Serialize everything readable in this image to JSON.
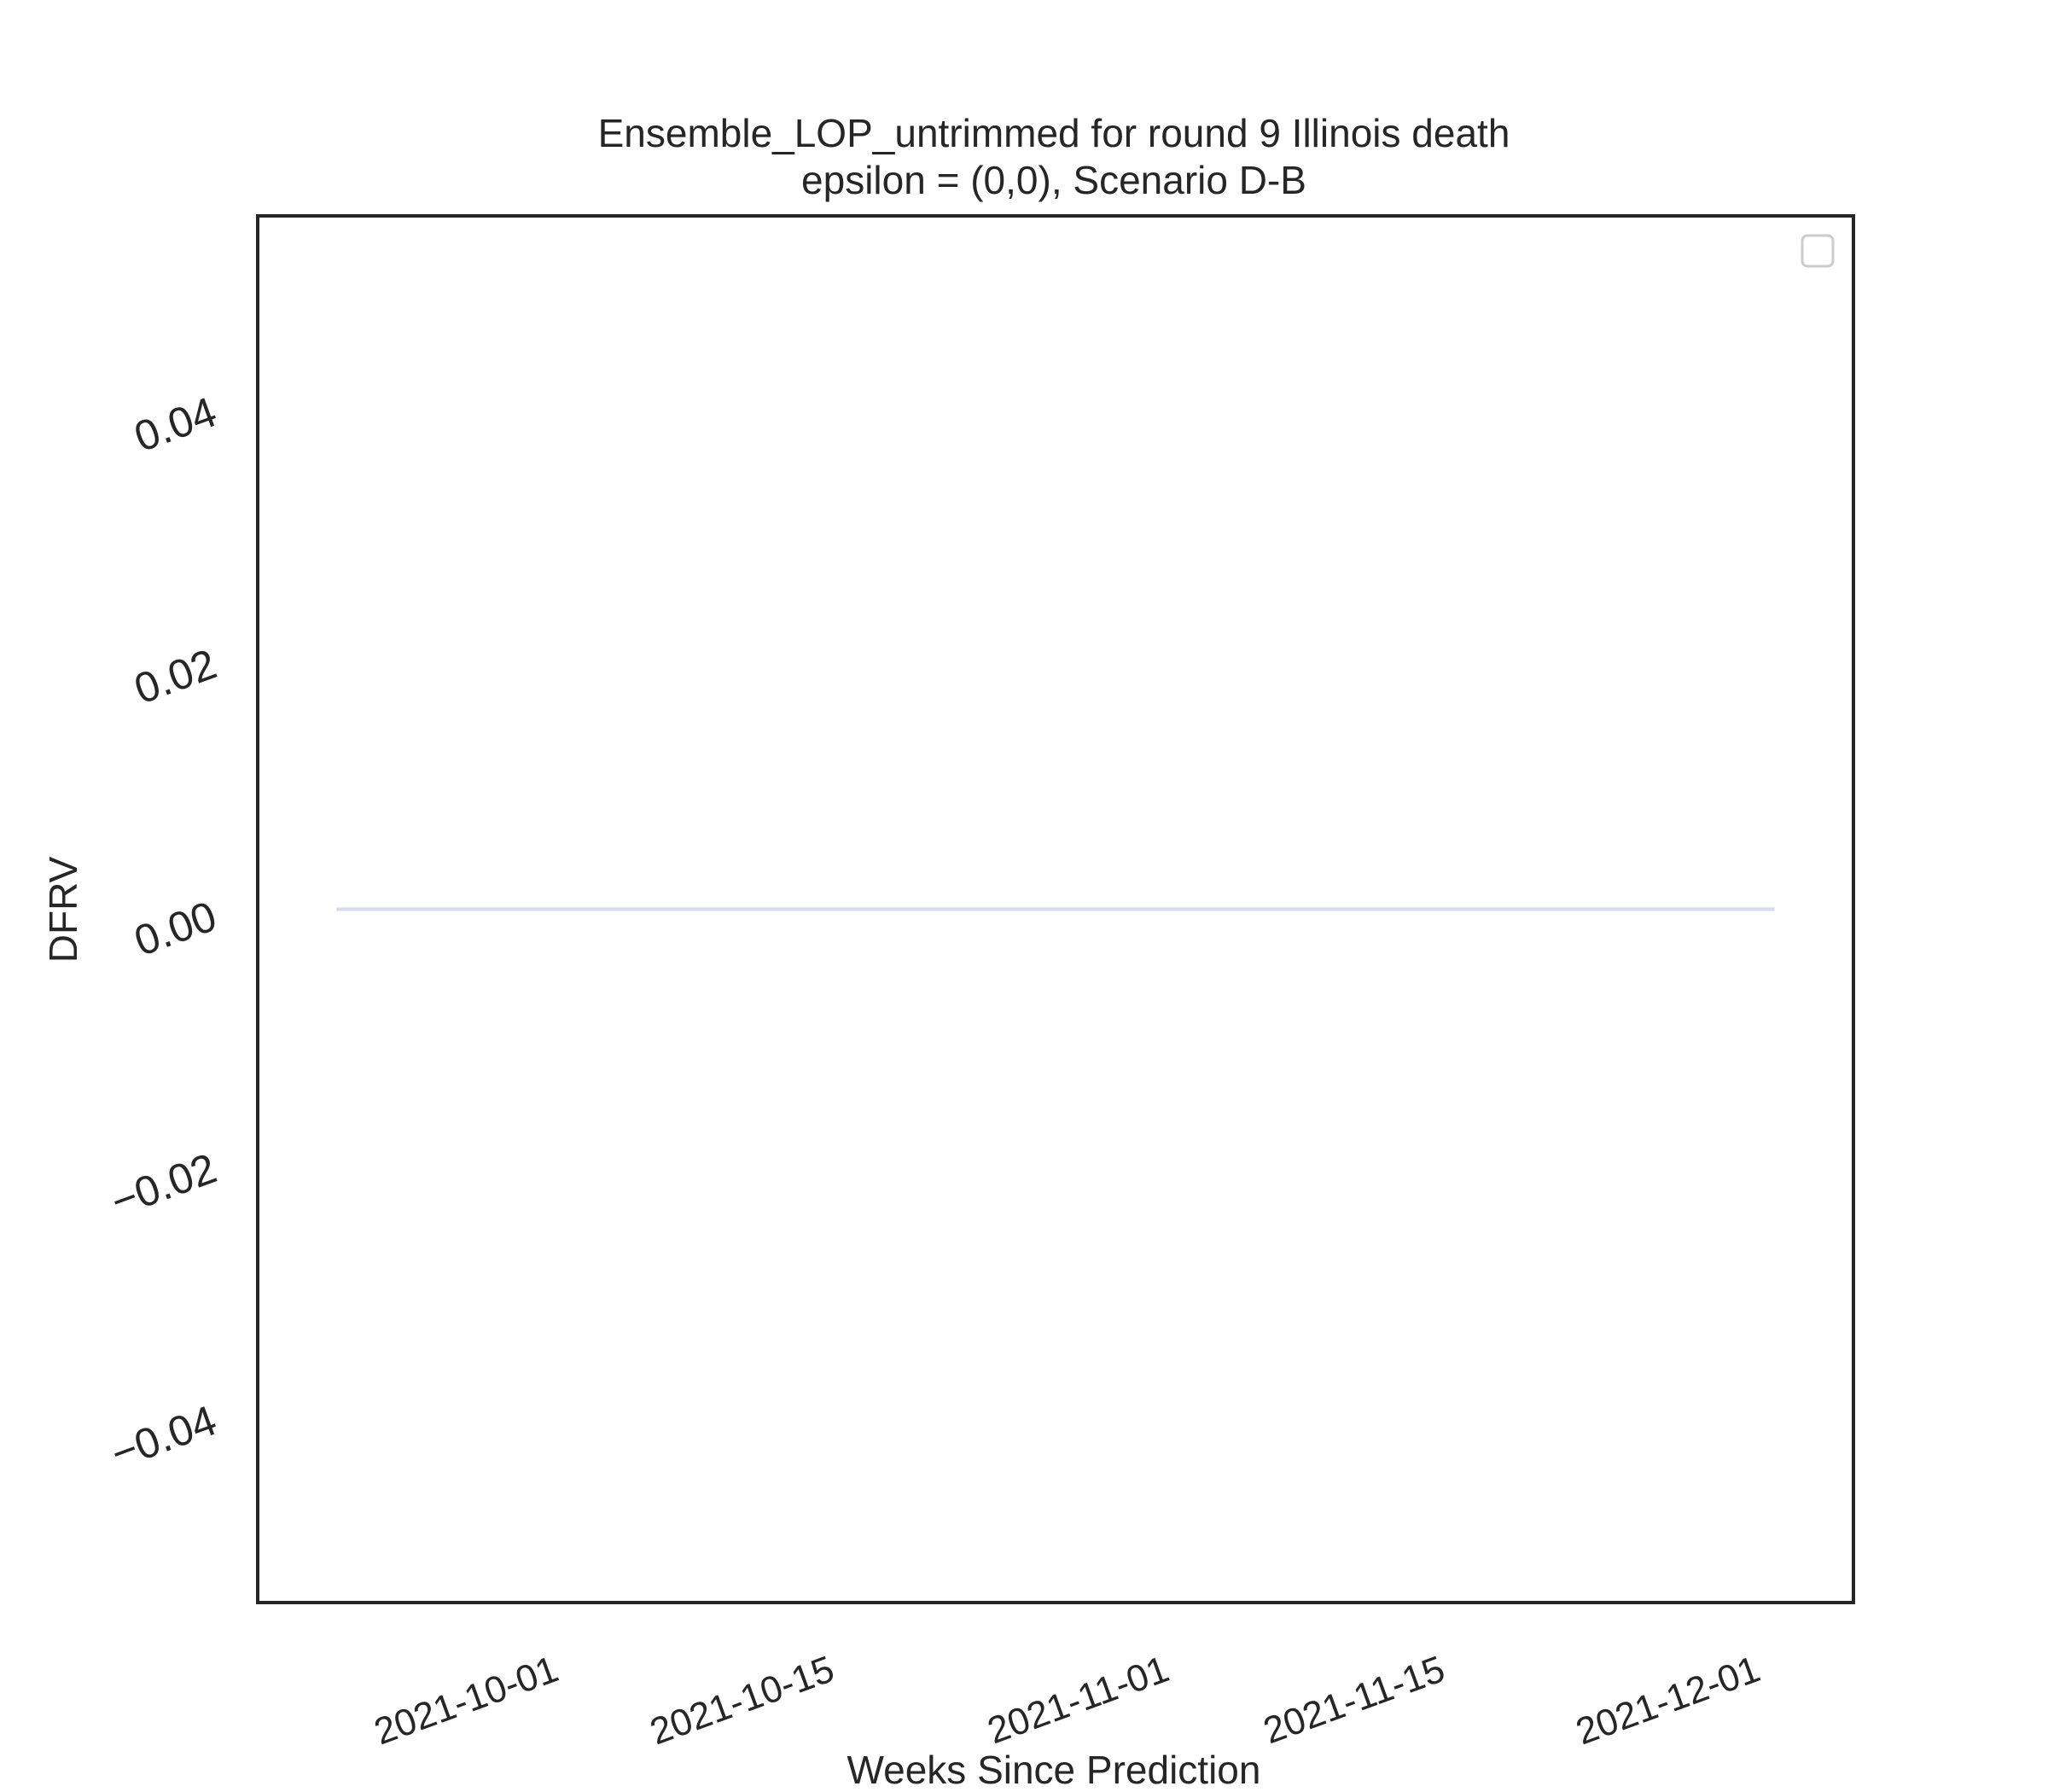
{
  "chart_data": {
    "type": "line",
    "title": "Ensemble_LOP_untrimmed for round 9 Illinois death",
    "subtitle": "epsilon = (0,0), Scenario D-B",
    "xlabel": "Weeks Since Prediction",
    "ylabel": "DFRV",
    "x_ticks": [
      "2021-10-01",
      "2021-10-15",
      "2021-11-01",
      "2021-11-15",
      "2021-12-01"
    ],
    "y_ticks": [
      "0.04",
      "0.02",
      "0.00",
      "−0.02",
      "−0.04"
    ],
    "y_tick_values": [
      0.04,
      0.02,
      0.0,
      -0.02,
      -0.04
    ],
    "xlim": [
      "2021-09-18",
      "2021-12-08"
    ],
    "ylim": [
      -0.055,
      0.055
    ],
    "grid": false,
    "legend": {
      "placement": "top-right",
      "entries": []
    },
    "series": [
      {
        "color": "#d4dbef",
        "x": [
          "2021-09-22",
          "2021-12-04"
        ],
        "y": [
          0.0,
          0.0
        ]
      }
    ]
  }
}
